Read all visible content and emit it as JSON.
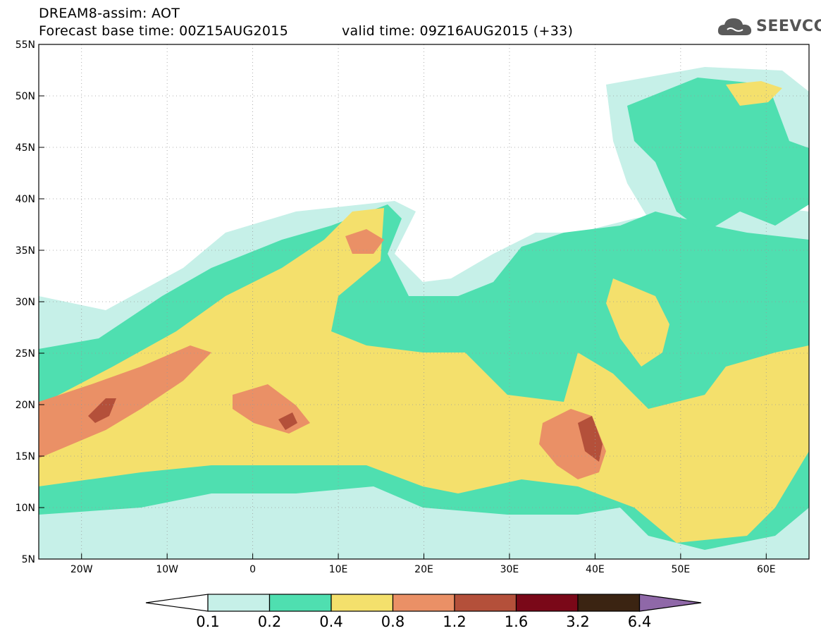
{
  "header": {
    "title_line1": "DREAM8-assim: AOT",
    "forecast_base": "Forecast base time: 00Z15AUG2015",
    "valid_time": "valid time: 09Z16AUG2015 (+33)"
  },
  "logo": {
    "text": "SEEVCCC",
    "icon": "cloud-icon"
  },
  "map": {
    "lon_range": [
      -25,
      65
    ],
    "lat_range": [
      5,
      55
    ],
    "lon_ticks": [
      {
        "value": -20,
        "label": "20W"
      },
      {
        "value": -10,
        "label": "10W"
      },
      {
        "value": 0,
        "label": "0"
      },
      {
        "value": 10,
        "label": "10E"
      },
      {
        "value": 20,
        "label": "20E"
      },
      {
        "value": 30,
        "label": "30E"
      },
      {
        "value": 40,
        "label": "40E"
      },
      {
        "value": 50,
        "label": "50E"
      },
      {
        "value": 60,
        "label": "60E"
      }
    ],
    "lat_ticks": [
      {
        "value": 5,
        "label": "5N"
      },
      {
        "value": 10,
        "label": "10N"
      },
      {
        "value": 15,
        "label": "15N"
      },
      {
        "value": 20,
        "label": "20N"
      },
      {
        "value": 25,
        "label": "25N"
      },
      {
        "value": 30,
        "label": "30N"
      },
      {
        "value": 35,
        "label": "35N"
      },
      {
        "value": 40,
        "label": "40N"
      },
      {
        "value": 45,
        "label": "45N"
      },
      {
        "value": 50,
        "label": "50N"
      },
      {
        "value": 55,
        "label": "55N"
      }
    ],
    "grid": "dotted"
  },
  "colorbar": {
    "colors": [
      "#ffffff",
      "#c6f0e8",
      "#4fdfb0",
      "#f4e06c",
      "#ea9066",
      "#b4503a",
      "#7a0818",
      "#3b2412",
      "#8f68a8"
    ],
    "labels": [
      "0.1",
      "0.2",
      "0.4",
      "0.8",
      "1.2",
      "1.6",
      "3.2",
      "6.4"
    ]
  }
}
